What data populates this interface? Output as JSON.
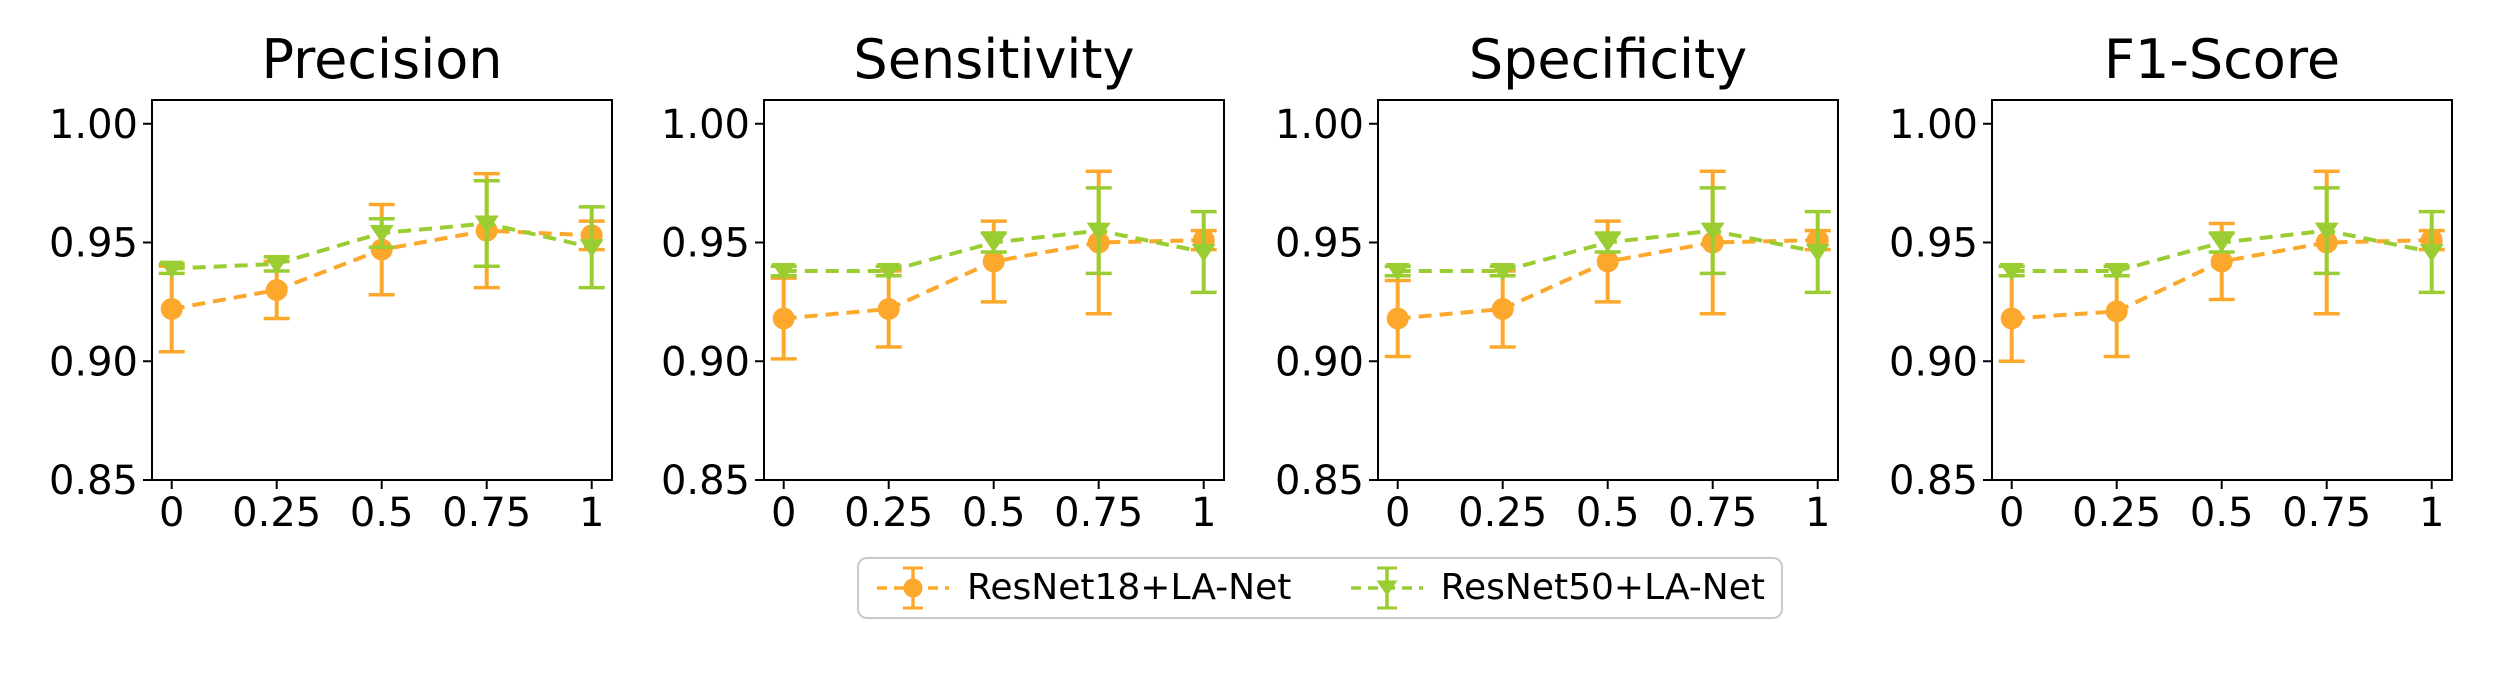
{
  "figure": {
    "background": "#ffffff",
    "text_color": "#000000"
  },
  "legend": {
    "items": [
      {
        "label": "ResNet18+LA-Net",
        "color": "#FBA82D",
        "marker": "circle"
      },
      {
        "label": "ResNet50+LA-Net",
        "color": "#9ACD32",
        "marker": "triangle-down"
      }
    ]
  },
  "axes": {
    "x_values": [
      0,
      0.25,
      0.5,
      0.75,
      1
    ],
    "xtick_labels": [
      "0",
      "0.25",
      "0.5",
      "0.75",
      "1"
    ],
    "ytick_values": [
      1.0,
      0.95,
      0.9,
      0.85
    ],
    "ytick_labels": [
      "1.00",
      "0.95",
      "0.90",
      "0.85"
    ],
    "ylim": [
      0.85,
      1.01
    ],
    "grid": false
  },
  "chart_data": [
    {
      "type": "line",
      "title": "Precision",
      "x": [
        0,
        0.25,
        0.5,
        0.75,
        1
      ],
      "series": [
        {
          "name": "ResNet18+LA-Net",
          "color": "#FBA82D",
          "marker": "circle",
          "values": [
            0.922,
            0.93,
            0.947,
            0.955,
            0.953
          ],
          "err": [
            0.018,
            0.012,
            0.019,
            0.024,
            0.006
          ]
        },
        {
          "name": "ResNet50+LA-Net",
          "color": "#9ACD32",
          "marker": "triangle-down",
          "values": [
            0.939,
            0.941,
            0.954,
            0.958,
            0.948
          ],
          "err": [
            0.002,
            0.003,
            0.006,
            0.018,
            0.017
          ]
        }
      ]
    },
    {
      "type": "line",
      "title": "Sensitivity",
      "x": [
        0,
        0.25,
        0.5,
        0.75,
        1
      ],
      "series": [
        {
          "name": "ResNet18+LA-Net",
          "color": "#FBA82D",
          "marker": "circle",
          "values": [
            0.918,
            0.922,
            0.942,
            0.95,
            0.951
          ],
          "err": [
            0.017,
            0.016,
            0.017,
            0.03,
            0.004
          ]
        },
        {
          "name": "ResNet50+LA-Net",
          "color": "#9ACD32",
          "marker": "triangle-down",
          "values": [
            0.938,
            0.938,
            0.95,
            0.955,
            0.946
          ],
          "err": [
            0.002,
            0.002,
            0.004,
            0.018,
            0.017
          ]
        }
      ]
    },
    {
      "type": "line",
      "title": "Specificity",
      "x": [
        0,
        0.25,
        0.5,
        0.75,
        1
      ],
      "series": [
        {
          "name": "ResNet18+LA-Net",
          "color": "#FBA82D",
          "marker": "circle",
          "values": [
            0.918,
            0.922,
            0.942,
            0.95,
            0.951
          ],
          "err": [
            0.016,
            0.016,
            0.017,
            0.03,
            0.004
          ]
        },
        {
          "name": "ResNet50+LA-Net",
          "color": "#9ACD32",
          "marker": "triangle-down",
          "values": [
            0.938,
            0.938,
            0.95,
            0.955,
            0.946
          ],
          "err": [
            0.002,
            0.002,
            0.004,
            0.018,
            0.017
          ]
        }
      ]
    },
    {
      "type": "line",
      "title": "F1-Score",
      "x": [
        0,
        0.25,
        0.5,
        0.75,
        1
      ],
      "series": [
        {
          "name": "ResNet18+LA-Net",
          "color": "#FBA82D",
          "marker": "circle",
          "values": [
            0.918,
            0.921,
            0.942,
            0.95,
            0.951
          ],
          "err": [
            0.018,
            0.019,
            0.016,
            0.03,
            0.004
          ]
        },
        {
          "name": "ResNet50+LA-Net",
          "color": "#9ACD32",
          "marker": "triangle-down",
          "values": [
            0.938,
            0.938,
            0.95,
            0.955,
            0.946
          ],
          "err": [
            0.002,
            0.002,
            0.004,
            0.018,
            0.017
          ]
        }
      ]
    }
  ]
}
